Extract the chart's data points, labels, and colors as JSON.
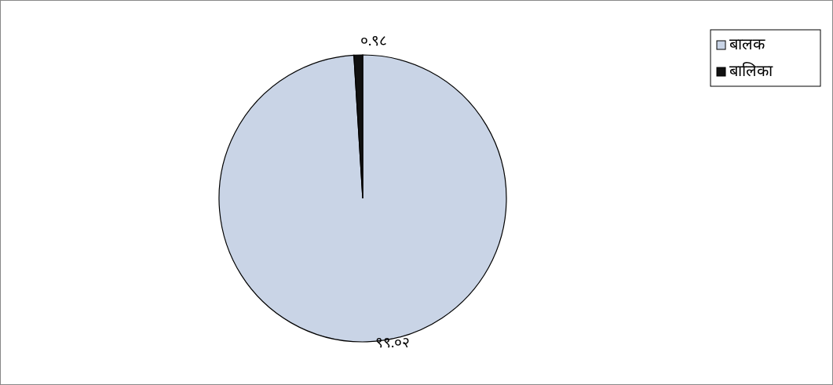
{
  "chart_data": {
    "type": "pie",
    "categories": [
      "बालक",
      "बालिका"
    ],
    "values": [
      99.02,
      0.98
    ],
    "value_labels": [
      "९९.०२",
      "०.९८"
    ],
    "colors": [
      "#c9d4e6",
      "#111111"
    ],
    "legend": "top right"
  }
}
